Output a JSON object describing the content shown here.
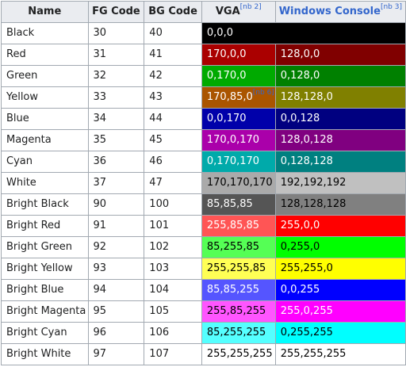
{
  "headers": {
    "name": "Name",
    "fg": "FG Code",
    "bg": "BG Code",
    "vga": "VGA",
    "vga_note": "[nb 2]",
    "win": "Windows Console",
    "win_note": "[nb 3]"
  },
  "rows": [
    {
      "name": "Black",
      "fg": "30",
      "bg": "40",
      "vga": "0,0,0",
      "vga_bg": "#000000",
      "vga_fg": "#ffffff",
      "win": "",
      "win_bg": "#000000",
      "win_fg": "#ffffff",
      "merged": true
    },
    {
      "name": "Red",
      "fg": "31",
      "bg": "41",
      "vga": "170,0,0",
      "vga_bg": "#aa0000",
      "vga_fg": "#ffffff",
      "win": "128,0,0",
      "win_bg": "#800000",
      "win_fg": "#ffffff"
    },
    {
      "name": "Green",
      "fg": "32",
      "bg": "42",
      "vga": "0,170,0",
      "vga_bg": "#00aa00",
      "vga_fg": "#ffffff",
      "win": "0,128,0",
      "win_bg": "#008000",
      "win_fg": "#ffffff"
    },
    {
      "name": "Yellow",
      "fg": "33",
      "bg": "43",
      "vga": "170,85,0",
      "vga_note": "[nb 6]",
      "vga_bg": "#aa5500",
      "vga_fg": "#ffffff",
      "win": "128,128,0",
      "win_bg": "#808000",
      "win_fg": "#ffffff"
    },
    {
      "name": "Blue",
      "fg": "34",
      "bg": "44",
      "vga": "0,0,170",
      "vga_bg": "#0000aa",
      "vga_fg": "#ffffff",
      "win": "0,0,128",
      "win_bg": "#000080",
      "win_fg": "#ffffff"
    },
    {
      "name": "Magenta",
      "fg": "35",
      "bg": "45",
      "vga": "170,0,170",
      "vga_bg": "#aa00aa",
      "vga_fg": "#ffffff",
      "win": "128,0,128",
      "win_bg": "#800080",
      "win_fg": "#ffffff"
    },
    {
      "name": "Cyan",
      "fg": "36",
      "bg": "46",
      "vga": "0,170,170",
      "vga_bg": "#00aaaa",
      "vga_fg": "#ffffff",
      "win": "0,128,128",
      "win_bg": "#008080",
      "win_fg": "#ffffff"
    },
    {
      "name": "White",
      "fg": "37",
      "bg": "47",
      "vga": "170,170,170",
      "vga_bg": "#aaaaaa",
      "vga_fg": "#000000",
      "win": "192,192,192",
      "win_bg": "#c0c0c0",
      "win_fg": "#000000"
    },
    {
      "name": "Bright Black",
      "fg": "90",
      "bg": "100",
      "vga": "85,85,85",
      "vga_bg": "#555555",
      "vga_fg": "#ffffff",
      "win": "128,128,128",
      "win_bg": "#808080",
      "win_fg": "#000000"
    },
    {
      "name": "Bright Red",
      "fg": "91",
      "bg": "101",
      "vga": "255,85,85",
      "vga_bg": "#ff5555",
      "vga_fg": "#ffffff",
      "win": "255,0,0",
      "win_bg": "#ff0000",
      "win_fg": "#ffffff"
    },
    {
      "name": "Bright Green",
      "fg": "92",
      "bg": "102",
      "vga": "85,255,85",
      "vga_bg": "#55ff55",
      "vga_fg": "#000000",
      "win": "0,255,0",
      "win_bg": "#00ff00",
      "win_fg": "#000000"
    },
    {
      "name": "Bright Yellow",
      "fg": "93",
      "bg": "103",
      "vga": "255,255,85",
      "vga_bg": "#ffff55",
      "vga_fg": "#000000",
      "win": "255,255,0",
      "win_bg": "#ffff00",
      "win_fg": "#000000"
    },
    {
      "name": "Bright Blue",
      "fg": "94",
      "bg": "104",
      "vga": "85,85,255",
      "vga_bg": "#5555ff",
      "vga_fg": "#ffffff",
      "win": "0,0,255",
      "win_bg": "#0000ff",
      "win_fg": "#ffffff"
    },
    {
      "name": "Bright Magenta",
      "fg": "95",
      "bg": "105",
      "vga": "255,85,255",
      "vga_bg": "#ff55ff",
      "vga_fg": "#000000",
      "win": "255,0,255",
      "win_bg": "#ff00ff",
      "win_fg": "#ffffff"
    },
    {
      "name": "Bright Cyan",
      "fg": "96",
      "bg": "106",
      "vga": "85,255,255",
      "vga_bg": "#55ffff",
      "vga_fg": "#000000",
      "win": "0,255,255",
      "win_bg": "#00ffff",
      "win_fg": "#000000"
    },
    {
      "name": "Bright White",
      "fg": "97",
      "bg": "107",
      "vga": "255,255,255",
      "vga_bg": "#ffffff",
      "vga_fg": "#000000",
      "win": "255,255,255",
      "win_bg": "#ffffff",
      "win_fg": "#000000"
    }
  ]
}
